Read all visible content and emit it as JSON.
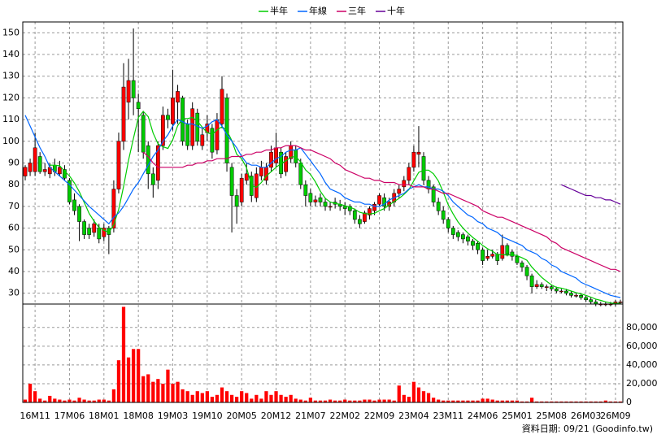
{
  "chart_data": {
    "type": "candlestick",
    "categories": [
      null,
      null,
      "16M11",
      null,
      null,
      null,
      null,
      null,
      null,
      "17M06",
      null,
      null,
      null,
      null,
      null,
      null,
      "18M01",
      null,
      null,
      null,
      null,
      null,
      null,
      "18M08",
      null,
      null,
      null,
      null,
      null,
      null,
      "19M03",
      null,
      null,
      null,
      null,
      null,
      null,
      "19M10",
      null,
      null,
      null,
      null,
      null,
      null,
      "20M05",
      null,
      null,
      null,
      null,
      null,
      null,
      "20M12",
      null,
      null,
      null,
      null,
      null,
      null,
      "21M07",
      null,
      null,
      null,
      null,
      null,
      null,
      "22M02",
      null,
      null,
      null,
      null,
      null,
      null,
      "22M09",
      null,
      null,
      null,
      null,
      null,
      null,
      "23M04",
      null,
      null,
      null,
      null,
      null,
      null,
      "23M11",
      null,
      null,
      null,
      null,
      null,
      null,
      "24M06",
      null,
      null,
      null,
      null,
      null,
      null,
      "25M01",
      null,
      null,
      null,
      null,
      null,
      null,
      "25M08",
      null,
      null,
      null,
      null,
      null,
      null,
      "26M03",
      null,
      null,
      null,
      null,
      null,
      "26M09",
      null
    ],
    "open": [
      84,
      86,
      86,
      93,
      86,
      85,
      89,
      85,
      87,
      82,
      73,
      70,
      63,
      60,
      58,
      60,
      56,
      60,
      60,
      78,
      100,
      118,
      128,
      118,
      112,
      98,
      85,
      82,
      98,
      112,
      108,
      118,
      120,
      108,
      98,
      113,
      98,
      104,
      106,
      96,
      108,
      120,
      88,
      75,
      72,
      82,
      84,
      74,
      84,
      82,
      88,
      90,
      95,
      86,
      92,
      96,
      90,
      80,
      76,
      72,
      74,
      72,
      70,
      72,
      71,
      70,
      70,
      68,
      64,
      63,
      66,
      68,
      71,
      74,
      70,
      72,
      76,
      79,
      82,
      88,
      94,
      93,
      82,
      79,
      72,
      68,
      64,
      60,
      58,
      57,
      56,
      54,
      53,
      50,
      46,
      47,
      48,
      46,
      52,
      49,
      47,
      44,
      42,
      38,
      33,
      34,
      33,
      33,
      32,
      31,
      31,
      30,
      29,
      29,
      28,
      27,
      26,
      25,
      25,
      25,
      25,
      26
    ],
    "high": [
      89,
      92,
      104,
      95,
      90,
      90,
      92,
      91,
      89,
      83,
      76,
      71,
      64,
      62,
      64,
      62,
      62,
      61,
      82,
      104,
      136,
      138,
      152,
      122,
      114,
      100,
      88,
      100,
      116,
      115,
      133,
      126,
      121,
      110,
      118,
      115,
      106,
      112,
      108,
      113,
      130,
      122,
      90,
      78,
      85,
      90,
      86,
      88,
      91,
      90,
      98,
      104,
      97,
      95,
      100,
      98,
      92,
      82,
      78,
      75,
      76,
      74,
      72,
      74,
      73,
      72,
      71,
      69,
      66,
      68,
      70,
      72,
      76,
      76,
      74,
      78,
      80,
      84,
      90,
      98,
      107,
      95,
      84,
      80,
      74,
      70,
      65,
      61,
      59,
      58,
      57,
      55,
      54,
      51,
      50,
      50,
      49,
      57,
      53,
      50,
      48,
      45,
      43,
      39,
      36,
      35,
      34,
      34,
      33,
      32,
      32,
      31,
      30,
      30,
      29,
      28,
      27,
      26,
      26,
      26,
      27,
      27
    ],
    "low": [
      82,
      84,
      84,
      85,
      84,
      83,
      84,
      84,
      82,
      71,
      66,
      54,
      55,
      55,
      56,
      53,
      54,
      48,
      58,
      76,
      96,
      110,
      112,
      95,
      92,
      78,
      74,
      78,
      96,
      106,
      105,
      108,
      98,
      96,
      96,
      98,
      96,
      100,
      92,
      94,
      106,
      86,
      58,
      62,
      70,
      80,
      72,
      72,
      82,
      80,
      86,
      88,
      83,
      84,
      90,
      88,
      78,
      70,
      70,
      70,
      70,
      68,
      68,
      69,
      68,
      66,
      66,
      62,
      60,
      62,
      64,
      66,
      70,
      68,
      68,
      70,
      74,
      77,
      80,
      86,
      88,
      80,
      76,
      70,
      66,
      62,
      58,
      55,
      54,
      53,
      52,
      50,
      48,
      43,
      45,
      46,
      43,
      45,
      47,
      45,
      43,
      40,
      36,
      30,
      32,
      32,
      31,
      31,
      30,
      30,
      29,
      28,
      28,
      27,
      26,
      25,
      24,
      24,
      24,
      24,
      24,
      25
    ],
    "close": [
      88,
      90,
      97,
      86,
      87,
      88,
      86,
      88,
      83,
      72,
      68,
      63,
      57,
      57,
      62,
      55,
      60,
      57,
      78,
      100,
      125,
      128,
      120,
      115,
      95,
      85,
      80,
      98,
      112,
      110,
      120,
      123,
      100,
      98,
      115,
      100,
      103,
      108,
      95,
      110,
      124,
      90,
      75,
      70,
      83,
      85,
      75,
      85,
      88,
      88,
      95,
      97,
      85,
      93,
      98,
      90,
      80,
      75,
      72,
      73,
      72,
      70,
      70,
      71,
      70,
      69,
      68,
      64,
      62,
      67,
      69,
      71,
      75,
      70,
      72,
      76,
      78,
      82,
      88,
      95,
      95,
      82,
      78,
      72,
      68,
      64,
      60,
      57,
      56,
      55,
      54,
      52,
      50,
      45,
      47,
      48,
      45,
      52,
      48,
      47,
      44,
      42,
      38,
      33,
      34,
      33,
      33,
      32,
      31,
      31,
      30,
      29,
      29,
      28,
      27,
      26,
      25,
      25,
      25,
      25,
      26,
      26
    ],
    "up_color": "#ff0000",
    "down_color": "#00cc00",
    "series": [
      {
        "name": "半年",
        "color": "#00cc00",
        "values": [
          null,
          null,
          null,
          null,
          null,
          89,
          89,
          88.7,
          86.3,
          84,
          80.8,
          76.7,
          71.8,
          66.7,
          63.2,
          60.3,
          59,
          58,
          61.5,
          68.7,
          79.2,
          91.3,
          101.3,
          111,
          113.8,
          111.3,
          103.8,
          98.8,
          97.5,
          96.7,
          100.8,
          107.2,
          110.5,
          110.5,
          111,
          109.3,
          106.5,
          104,
          103.2,
          105.2,
          106.7,
          105,
          100.3,
          94,
          92,
          87.8,
          79.7,
          78.8,
          81,
          84,
          86,
          88,
          89.7,
          91,
          92.7,
          93,
          90.5,
          86.8,
          84.7,
          81.3,
          77,
          73.7,
          72,
          71.3,
          71,
          70.3,
          69.7,
          68.7,
          67.3,
          66.7,
          66.5,
          66.8,
          68,
          69,
          70.7,
          72.2,
          73.7,
          75.5,
          77.7,
          81.8,
          85.7,
          86.7,
          86.7,
          85,
          81.7,
          76.5,
          70.7,
          66.5,
          62.8,
          60,
          57.7,
          55.7,
          54,
          52,
          50.5,
          49.3,
          47.8,
          47.8,
          47.5,
          47.8,
          47.3,
          46.3,
          45.2,
          42,
          39.7,
          37.3,
          35.5,
          33.8,
          32.7,
          32.3,
          31.7,
          31,
          30.3,
          29.7,
          29,
          28.2,
          27.3,
          26.7,
          26,
          25.5,
          25.3,
          25.3
        ]
      },
      {
        "name": "年線",
        "color": "#0066ff",
        "values": [
          112,
          107,
          102,
          97,
          93,
          88,
          86,
          84,
          82,
          80,
          77.5,
          75,
          72.5,
          70,
          68,
          66,
          64,
          62,
          65,
          67,
          70,
          74,
          78,
          81,
          85,
          89,
          93,
          96,
          100,
          103,
          107,
          110,
          109,
          108,
          108,
          107,
          106,
          107,
          109,
          110,
          107,
          103,
          100,
          97,
          93,
          90,
          89,
          89,
          88,
          88,
          90,
          92,
          93,
          95,
          96,
          96,
          97,
          94,
          91,
          88,
          85,
          81,
          78,
          77,
          76,
          74,
          73,
          72,
          72,
          71,
          71,
          70,
          70,
          71,
          73,
          74,
          75,
          76,
          78,
          79,
          80,
          79,
          79,
          78,
          78,
          77,
          75,
          72,
          70,
          68,
          66,
          65,
          63,
          62,
          60,
          59,
          58,
          56,
          55,
          54,
          53,
          52,
          50,
          49,
          48,
          46,
          45,
          43,
          42,
          40,
          39,
          38,
          37,
          35,
          34,
          33,
          32,
          31,
          30,
          29,
          28.5,
          28
        ]
      },
      {
        "name": "三年",
        "color": "#cc0066",
        "values": [
          null,
          null,
          null,
          null,
          null,
          null,
          null,
          null,
          null,
          null,
          null,
          null,
          null,
          null,
          null,
          null,
          null,
          null,
          null,
          null,
          null,
          null,
          null,
          null,
          95,
          93,
          90,
          88,
          88,
          88,
          88,
          88,
          88,
          89,
          89,
          90,
          90,
          91,
          91,
          92,
          92,
          92,
          93,
          93,
          93,
          94,
          94,
          95,
          95,
          96,
          96,
          97,
          97,
          98,
          98,
          98,
          97,
          96,
          96,
          95,
          94,
          93,
          92,
          90,
          89,
          87,
          86,
          85,
          84,
          83,
          83,
          82,
          82,
          81,
          81,
          81,
          80,
          80,
          80,
          79,
          79,
          79,
          78,
          78,
          77,
          76,
          76,
          75,
          74,
          73,
          72,
          71,
          70,
          68,
          67,
          66,
          65,
          65,
          64,
          63,
          62,
          61,
          60,
          59,
          58,
          57,
          56,
          54,
          53,
          51,
          50,
          49,
          48,
          47,
          46,
          45,
          44,
          43,
          42,
          41,
          41,
          40
        ]
      },
      {
        "name": "十年",
        "color": "#660099",
        "values": [
          null,
          null,
          null,
          null,
          null,
          null,
          null,
          null,
          null,
          null,
          null,
          null,
          null,
          null,
          null,
          null,
          null,
          null,
          null,
          null,
          null,
          null,
          null,
          null,
          null,
          null,
          null,
          null,
          null,
          null,
          null,
          null,
          null,
          null,
          null,
          null,
          null,
          null,
          null,
          null,
          null,
          null,
          null,
          null,
          null,
          null,
          null,
          null,
          null,
          null,
          null,
          null,
          null,
          null,
          null,
          null,
          null,
          null,
          null,
          null,
          null,
          null,
          null,
          null,
          null,
          null,
          null,
          null,
          null,
          null,
          null,
          null,
          null,
          null,
          null,
          null,
          null,
          null,
          null,
          null,
          null,
          null,
          null,
          null,
          null,
          null,
          null,
          null,
          null,
          null,
          null,
          null,
          null,
          null,
          null,
          null,
          null,
          null,
          null,
          null,
          null,
          null,
          null,
          null,
          null,
          null,
          null,
          null,
          null,
          80,
          79,
          78,
          77,
          76,
          75,
          75,
          74,
          74,
          73,
          73,
          72,
          71
        ]
      }
    ],
    "volume": [
      3000,
      20000,
      12000,
      4000,
      2000,
      7000,
      4000,
      3000,
      2000,
      3000,
      2000,
      5000,
      3000,
      2000,
      2000,
      3000,
      3000,
      2000,
      14000,
      45000,
      102000,
      48000,
      57000,
      57000,
      28000,
      30000,
      22000,
      25000,
      20000,
      35000,
      20000,
      22000,
      14000,
      12000,
      8000,
      12000,
      10000,
      12000,
      6000,
      8000,
      16000,
      12000,
      8000,
      6000,
      12000,
      10000,
      4000,
      8000,
      4000,
      12000,
      8000,
      12000,
      8000,
      6000,
      8000,
      4000,
      3000,
      2000,
      5000,
      2000,
      2000,
      2000,
      3000,
      2000,
      2000,
      3000,
      2000,
      2000,
      2000,
      3000,
      3000,
      2000,
      3000,
      3000,
      3000,
      2000,
      18000,
      8000,
      6000,
      22000,
      16000,
      12000,
      10000,
      5000,
      3000,
      2000,
      2000,
      2000,
      2000,
      2000,
      2000,
      2000,
      2000,
      4000,
      4000,
      3000,
      2000,
      2000,
      2000,
      2000,
      2000,
      1000,
      1000,
      5000,
      1000,
      1000,
      1000,
      1000,
      1000,
      1000,
      1000,
      1000,
      1000,
      1000,
      1000,
      1000,
      1000,
      1000,
      2000,
      1000,
      1000,
      1000
    ],
    "volume_color": "#ff0000",
    "ylim": [
      25,
      155
    ],
    "yticks": [
      30,
      40,
      50,
      60,
      70,
      80,
      90,
      100,
      110,
      120,
      130,
      140,
      150
    ],
    "y2lim": [
      0,
      105000
    ],
    "y2ticks": [
      0,
      {
        "value": 20000,
        "label": "20,000"
      },
      {
        "value": 40000,
        "label": "40,000"
      },
      {
        "value": 60000,
        "label": "60,000"
      },
      {
        "value": 80000,
        "label": "80,000"
      }
    ],
    "grid": true,
    "footer": "資料日期: 09/21 (Goodinfo.tw)"
  }
}
